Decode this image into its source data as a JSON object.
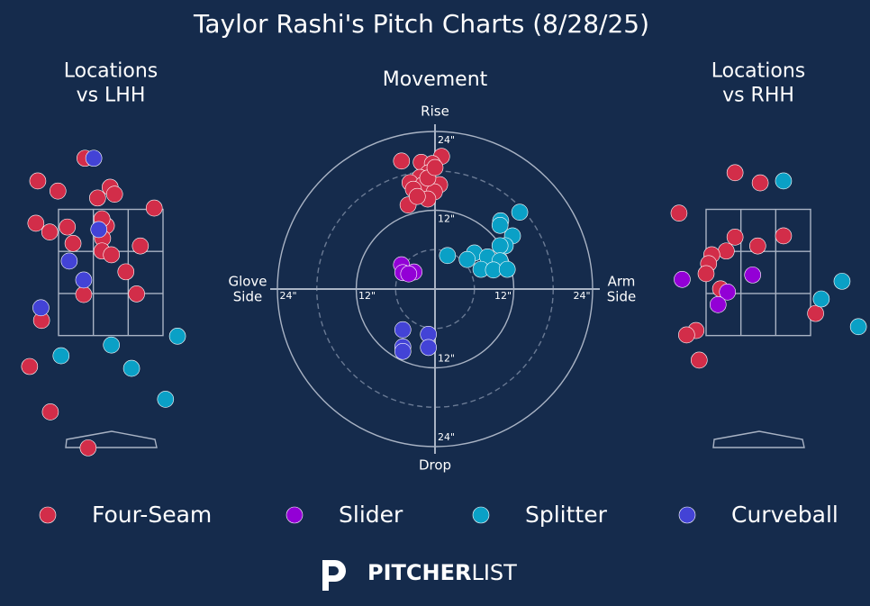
{
  "title": "Taylor Rashi's Pitch Charts (8/28/25)",
  "legend": [
    {
      "name": "Four-Seam",
      "color": "#d22d49"
    },
    {
      "name": "Slider",
      "color": "#9300d6"
    },
    {
      "name": "Splitter",
      "color": "#0aa0c6"
    },
    {
      "name": "Curveball",
      "color": "#4343d6"
    }
  ],
  "logo": {
    "bold": "PITCHER",
    "light": "LIST"
  },
  "chart_data": [
    {
      "type": "scatter",
      "title": "Locations\nvs LHH",
      "xlim": [
        -1.76,
        1.76
      ],
      "ylim": [
        -0.46,
        4.82
      ],
      "zone": {
        "x": [
          -0.83,
          0.83
        ],
        "y": [
          1.5,
          3.5
        ]
      },
      "series": [
        {
          "x": [
            -0.41,
            -1.16,
            -0.84,
            -0.21,
            -0.01,
            0.06,
            0.69,
            -1.19,
            -0.97,
            -0.69,
            -0.6,
            -0.07,
            -0.13,
            -0.14,
            0.01,
            0.47,
            0.24,
            -0.43,
            0.41,
            -1.1,
            -1.29,
            -0.96,
            -0.36,
            -0.14
          ],
          "y": [
            4.31,
            3.95,
            3.79,
            3.68,
            3.85,
            3.74,
            3.52,
            3.28,
            3.14,
            3.22,
            2.96,
            3.24,
            3.04,
            2.84,
            2.78,
            2.92,
            2.51,
            2.15,
            2.16,
            1.74,
            1.01,
            0.29,
            -0.28,
            3.35
          ]
        },
        {
          "x": [],
          "y": []
        },
        {
          "x": [
            1.06,
            0.01,
            -0.79,
            0.33,
            0.87
          ],
          "y": [
            1.49,
            1.35,
            1.18,
            0.98,
            0.49
          ]
        },
        {
          "x": [
            -0.27,
            -0.19,
            -0.66,
            -0.43,
            -1.11
          ],
          "y": [
            4.31,
            3.18,
            2.68,
            2.38,
            1.94
          ]
        }
      ]
    },
    {
      "type": "movement",
      "title": "Movement",
      "xlim": [
        -24,
        24
      ],
      "ylim": [
        -24,
        24
      ],
      "rings": [
        12,
        24
      ],
      "dashed_rings": [
        6,
        18
      ],
      "xticks": [
        {
          "value": -24,
          "label": "24\""
        },
        {
          "value": -12,
          "label": "12\""
        },
        {
          "value": 12,
          "label": "12\""
        },
        {
          "value": 24,
          "label": "24\""
        }
      ],
      "yticks": [
        {
          "value": -24,
          "label": "24\""
        },
        {
          "value": -12,
          "label": "12\""
        },
        {
          "value": 12,
          "label": "12\""
        },
        {
          "value": 24,
          "label": "24\""
        }
      ],
      "axis_labels": {
        "top": "Rise",
        "bottom": "Drop",
        "left": "Glove\nSide",
        "right": "Arm\nSide"
      },
      "series": [
        {
          "x": [
            -5.1,
            -2.1,
            1,
            -0.4,
            -1,
            -2.3,
            -3.8,
            -1.8,
            0.7,
            -3.3,
            -0.1,
            -1.1,
            -4.1,
            -2.7,
            -1.1,
            0
          ],
          "y": [
            19.5,
            19.3,
            20.2,
            19.1,
            17.7,
            17,
            16.2,
            15.9,
            15.9,
            15.2,
            14.8,
            13.7,
            12.8,
            14.1,
            16.9,
            18.5
          ]
        },
        {
          "x": [
            -5.1,
            -4.9,
            -3.2,
            -4
          ],
          "y": [
            3.7,
            2.5,
            2.6,
            2.3
          ]
        },
        {
          "x": [
            10,
            12.9,
            9.9,
            11.8,
            10.7,
            9.9,
            6,
            1.9,
            4.9,
            8,
            9.9,
            7,
            8.9,
            11
          ],
          "y": [
            10.4,
            11.7,
            9.7,
            8.1,
            6.6,
            6.6,
            5.5,
            5.1,
            4.5,
            4.9,
            4.3,
            3,
            2.9,
            3
          ]
        },
        {
          "x": [
            -4.9,
            -1,
            -4.9,
            -4.9,
            -1
          ],
          "y": [
            -6.2,
            -6.9,
            -8.8,
            -9.5,
            -8.9
          ]
        }
      ]
    },
    {
      "type": "scatter",
      "title": "Locations\nvs RHH",
      "xlim": [
        -1.76,
        1.76
      ],
      "ylim": [
        -0.46,
        4.82
      ],
      "zone": {
        "x": [
          -0.83,
          0.83
        ],
        "y": [
          1.5,
          3.5
        ]
      },
      "series": [
        {
          "x": [
            -0.37,
            0.03,
            -1.26,
            -0.37,
            -0.01,
            0.4,
            -0.51,
            -0.74,
            -0.79,
            -0.83,
            -0.6,
            0.91,
            -0.99,
            -1.14,
            -0.94
          ],
          "y": [
            4.08,
            3.92,
            3.44,
            3.06,
            2.92,
            3.08,
            2.84,
            2.78,
            2.64,
            2.48,
            2.24,
            1.85,
            1.58,
            1.51,
            1.11
          ]
        },
        {
          "x": [
            -1.21,
            -0.09,
            -0.49,
            -0.64
          ],
          "y": [
            2.39,
            2.46,
            2.19,
            1.99
          ]
        },
        {
          "x": [
            0.4,
            1.33,
            1,
            1.59
          ],
          "y": [
            3.95,
            2.36,
            2.08,
            1.64
          ]
        },
        {
          "x": [],
          "y": []
        }
      ]
    }
  ]
}
